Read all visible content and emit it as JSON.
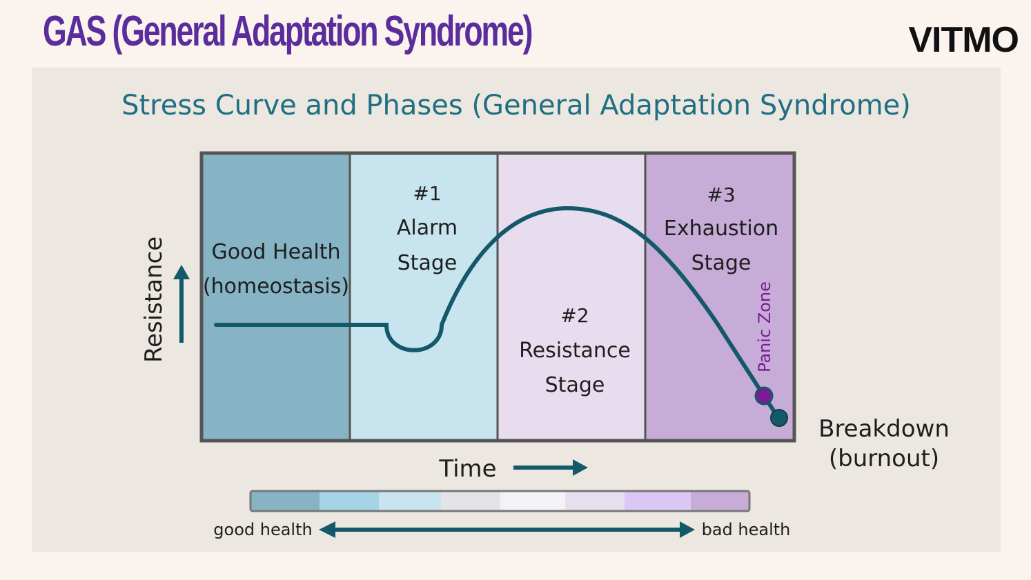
{
  "slide": {
    "title": "GAS (General Adaptation Syndrome)",
    "logo": "VITMO"
  },
  "diagram": {
    "title": "Stress Curve and Phases (General Adaptation Syndrome)",
    "y_axis_label": "Resistance",
    "x_axis_label": "Time",
    "stages": [
      {
        "line1": "Good Health",
        "line2": "(homeostasis)",
        "line3": ""
      },
      {
        "line1": "#1",
        "line2": "Alarm",
        "line3": "Stage"
      },
      {
        "line1": "#2",
        "line2": "Resistance",
        "line3": "Stage"
      },
      {
        "line1": "#3",
        "line2": "Exhaustion",
        "line3": "Stage"
      }
    ],
    "panic_zone": "Panic Zone",
    "breakdown": {
      "line1": "Breakdown",
      "line2": "(burnout)"
    },
    "scale": {
      "left_label": "good health",
      "right_label": "bad health"
    },
    "colors": {
      "curve": "#14596a",
      "stage_fills": [
        "#86b4c4",
        "#c8e4ee",
        "#e8dcef",
        "#c6acd7"
      ],
      "title": "#1f6f82",
      "panic": "#7a1c93",
      "scale_gradient": [
        "#86b4c4",
        "#a4d4e6",
        "#c8e4ee",
        "#e4e4e8",
        "#f4f2f6",
        "#e8e0f0",
        "#dcc6f4",
        "#c6acd7"
      ]
    }
  }
}
